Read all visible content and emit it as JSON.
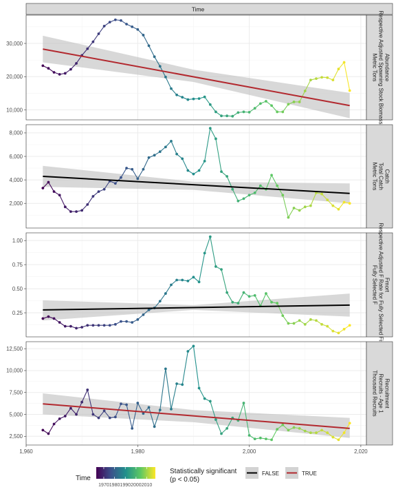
{
  "strip_title": "Time",
  "x_axis": {
    "ticks": [
      1960,
      1980,
      2000,
      2020
    ],
    "tick_labels": [
      "1,960",
      "1,980",
      "2,000",
      "2,020"
    ],
    "range": [
      1960,
      2021
    ]
  },
  "legend": {
    "time_title": "Time",
    "time_ticks": [
      1970,
      1980,
      1990,
      2000,
      2010
    ],
    "time_tick_labels": [
      "1970",
      "1980",
      "1990",
      "2000",
      "2010"
    ],
    "time_range": [
      1963,
      2018
    ],
    "sig_title_line1": "Statistically significant",
    "sig_title_line2": "(p < 0.05)",
    "false_label": "FALSE",
    "true_label": "TRUE"
  },
  "colors": {
    "trend_true": "#B2282E",
    "trend_false": "#000000",
    "ribbon": "#BEBEBE",
    "strip_bg": "#D9D9D9",
    "grid": "#EBEBEB"
  },
  "chart_data": [
    {
      "type": "line",
      "facet_label": [
        "Abundance",
        "Respective Adjusted Spawning Stock Biomass",
        "Metric Tons"
      ],
      "y_ticks": [
        10000,
        20000,
        30000
      ],
      "y_tick_labels": [
        "10,000",
        "20,000",
        "30,000"
      ],
      "ylim": [
        7000,
        38500
      ],
      "significant": true,
      "trend": {
        "x": [
          1963,
          2018
        ],
        "y": [
          28300,
          11300
        ]
      },
      "ribbon": {
        "x": [
          1963,
          1990,
          2018
        ],
        "upper": [
          32300,
          22100,
          15100
        ],
        "lower": [
          24300,
          18400,
          7500
        ]
      },
      "x": [
        1963,
        1964,
        1965,
        1966,
        1967,
        1968,
        1969,
        1970,
        1971,
        1972,
        1973,
        1974,
        1975,
        1976,
        1977,
        1978,
        1979,
        1980,
        1981,
        1982,
        1983,
        1984,
        1985,
        1986,
        1987,
        1988,
        1989,
        1990,
        1991,
        1992,
        1993,
        1994,
        1995,
        1996,
        1997,
        1998,
        1999,
        2000,
        2001,
        2002,
        2003,
        2004,
        2005,
        2006,
        2007,
        2008,
        2009,
        2010,
        2011,
        2012,
        2013,
        2014,
        2015,
        2016,
        2017,
        2018
      ],
      "y": [
        23300,
        22500,
        21300,
        20700,
        21000,
        22200,
        24000,
        26400,
        28400,
        30500,
        32900,
        35200,
        36400,
        37100,
        36900,
        35800,
        35000,
        34200,
        32500,
        29300,
        26000,
        23100,
        19900,
        16400,
        14500,
        13800,
        13100,
        13300,
        13400,
        13900,
        11600,
        9400,
        8200,
        8200,
        8100,
        9200,
        9400,
        9300,
        10500,
        11900,
        12600,
        11300,
        9400,
        9400,
        11700,
        12400,
        12400,
        15700,
        19000,
        19400,
        19800,
        19700,
        19000,
        22300,
        24300,
        15800
      ]
    },
    {
      "type": "line",
      "facet_label": [
        "Catch",
        "Total Catch",
        "Metric Tons"
      ],
      "y_ticks": [
        2000,
        4000,
        6000,
        8000
      ],
      "y_tick_labels": [
        "2,000",
        "4,000",
        "6,000",
        "8,000"
      ],
      "ylim": [
        -100,
        8700
      ],
      "significant": false,
      "trend": {
        "x": [
          1963,
          2018
        ],
        "y": [
          4300,
          2850
        ]
      },
      "ribbon": {
        "x": [
          1963,
          1990,
          2018
        ],
        "upper": [
          5200,
          3850,
          3700
        ],
        "lower": [
          3400,
          3150,
          2000
        ]
      },
      "x": [
        1963,
        1964,
        1965,
        1966,
        1967,
        1968,
        1969,
        1970,
        1971,
        1972,
        1973,
        1974,
        1975,
        1976,
        1977,
        1978,
        1979,
        1980,
        1981,
        1982,
        1983,
        1984,
        1985,
        1986,
        1987,
        1988,
        1989,
        1990,
        1991,
        1992,
        1993,
        1994,
        1995,
        1996,
        1997,
        1998,
        1999,
        2000,
        2001,
        2002,
        2003,
        2004,
        2005,
        2006,
        2007,
        2008,
        2009,
        2010,
        2011,
        2012,
        2013,
        2014,
        2015,
        2016,
        2017,
        2018
      ],
      "y": [
        3300,
        3800,
        3000,
        2700,
        1700,
        1300,
        1300,
        1400,
        1900,
        2600,
        3000,
        3200,
        3900,
        3700,
        4200,
        5000,
        4900,
        4100,
        4900,
        5900,
        6100,
        6400,
        6800,
        7300,
        6200,
        5800,
        4800,
        4500,
        4800,
        5600,
        8400,
        7500,
        4700,
        4300,
        3200,
        2200,
        2400,
        2700,
        2900,
        3500,
        3200,
        4400,
        3500,
        2700,
        800,
        1600,
        1400,
        1700,
        1800,
        2900,
        2800,
        2300,
        1800,
        1500,
        2100,
        2000
      ]
    },
    {
      "type": "line",
      "facet_label": [
        "Fmort",
        "Respective Adjusted F Rate for Fully Selected Fish",
        "Fully Selected F"
      ],
      "y_ticks": [
        0.25,
        0.5,
        0.75,
        1.0
      ],
      "y_tick_labels": [
        "0.25",
        "0.50",
        "0.75",
        "1.00"
      ],
      "ylim": [
        0.0,
        1.08
      ],
      "significant": false,
      "trend": {
        "x": [
          1963,
          2018
        ],
        "y": [
          0.28,
          0.33
        ]
      },
      "ribbon": {
        "x": [
          1963,
          1990,
          2018
        ],
        "upper": [
          0.38,
          0.33,
          0.45
        ],
        "lower": [
          0.17,
          0.28,
          0.21
        ]
      },
      "x": [
        1963,
        1964,
        1965,
        1966,
        1967,
        1968,
        1969,
        1970,
        1971,
        1972,
        1973,
        1974,
        1975,
        1976,
        1977,
        1978,
        1979,
        1980,
        1981,
        1982,
        1983,
        1984,
        1985,
        1986,
        1987,
        1988,
        1989,
        1990,
        1991,
        1992,
        1993,
        1994,
        1995,
        1996,
        1997,
        1998,
        1999,
        2000,
        2001,
        2002,
        2003,
        2004,
        2005,
        2006,
        2007,
        2008,
        2009,
        2010,
        2011,
        2012,
        2013,
        2014,
        2015,
        2016,
        2017,
        2018
      ],
      "y": [
        0.19,
        0.21,
        0.19,
        0.15,
        0.11,
        0.11,
        0.09,
        0.1,
        0.12,
        0.12,
        0.12,
        0.12,
        0.12,
        0.13,
        0.16,
        0.16,
        0.15,
        0.18,
        0.23,
        0.28,
        0.3,
        0.37,
        0.45,
        0.54,
        0.59,
        0.59,
        0.58,
        0.62,
        0.57,
        0.87,
        1.04,
        0.73,
        0.7,
        0.46,
        0.36,
        0.35,
        0.46,
        0.42,
        0.43,
        0.32,
        0.45,
        0.36,
        0.35,
        0.22,
        0.14,
        0.14,
        0.17,
        0.13,
        0.18,
        0.17,
        0.13,
        0.11,
        0.06,
        0.04,
        0.08,
        0.12
      ]
    },
    {
      "type": "line",
      "facet_label": [
        "Recruitment",
        "Recruits - Age 1",
        "Thousand Recruits"
      ],
      "y_ticks": [
        2500,
        5000,
        7500,
        10000,
        12500
      ],
      "y_tick_labels": [
        "2,500",
        "5,000",
        "7,500",
        "10,000",
        "12,500"
      ],
      "ylim": [
        1500,
        13300
      ],
      "significant": true,
      "trend": {
        "x": [
          1963,
          2018
        ],
        "y": [
          6200,
          3400
        ]
      },
      "ribbon": {
        "x": [
          1963,
          1990,
          2018
        ],
        "upper": [
          7400,
          5500,
          4600
        ],
        "lower": [
          5000,
          4100,
          2300
        ]
      },
      "x": [
        1963,
        1964,
        1965,
        1966,
        1967,
        1968,
        1969,
        1970,
        1971,
        1972,
        1973,
        1974,
        1975,
        1976,
        1977,
        1978,
        1979,
        1980,
        1981,
        1982,
        1983,
        1984,
        1985,
        1986,
        1987,
        1988,
        1989,
        1990,
        1991,
        1992,
        1993,
        1994,
        1995,
        1996,
        1997,
        1998,
        1999,
        2000,
        2001,
        2002,
        2003,
        2004,
        2005,
        2006,
        2007,
        2008,
        2009,
        2010,
        2011,
        2012,
        2013,
        2014,
        2015,
        2016,
        2017,
        2018
      ],
      "y": [
        3200,
        2800,
        3900,
        4500,
        4800,
        5700,
        5000,
        6400,
        7800,
        5000,
        4600,
        5400,
        4600,
        4700,
        6200,
        6100,
        3400,
        6300,
        5100,
        5800,
        3600,
        5500,
        10200,
        5600,
        8500,
        8400,
        12200,
        12800,
        8000,
        6800,
        6500,
        4400,
        2800,
        3400,
        4600,
        4300,
        6300,
        2600,
        2200,
        2300,
        2200,
        2100,
        3300,
        3800,
        3200,
        3500,
        3400,
        3100,
        2900,
        2900,
        3200,
        2900,
        2400,
        2100,
        2900,
        4000
      ]
    }
  ]
}
